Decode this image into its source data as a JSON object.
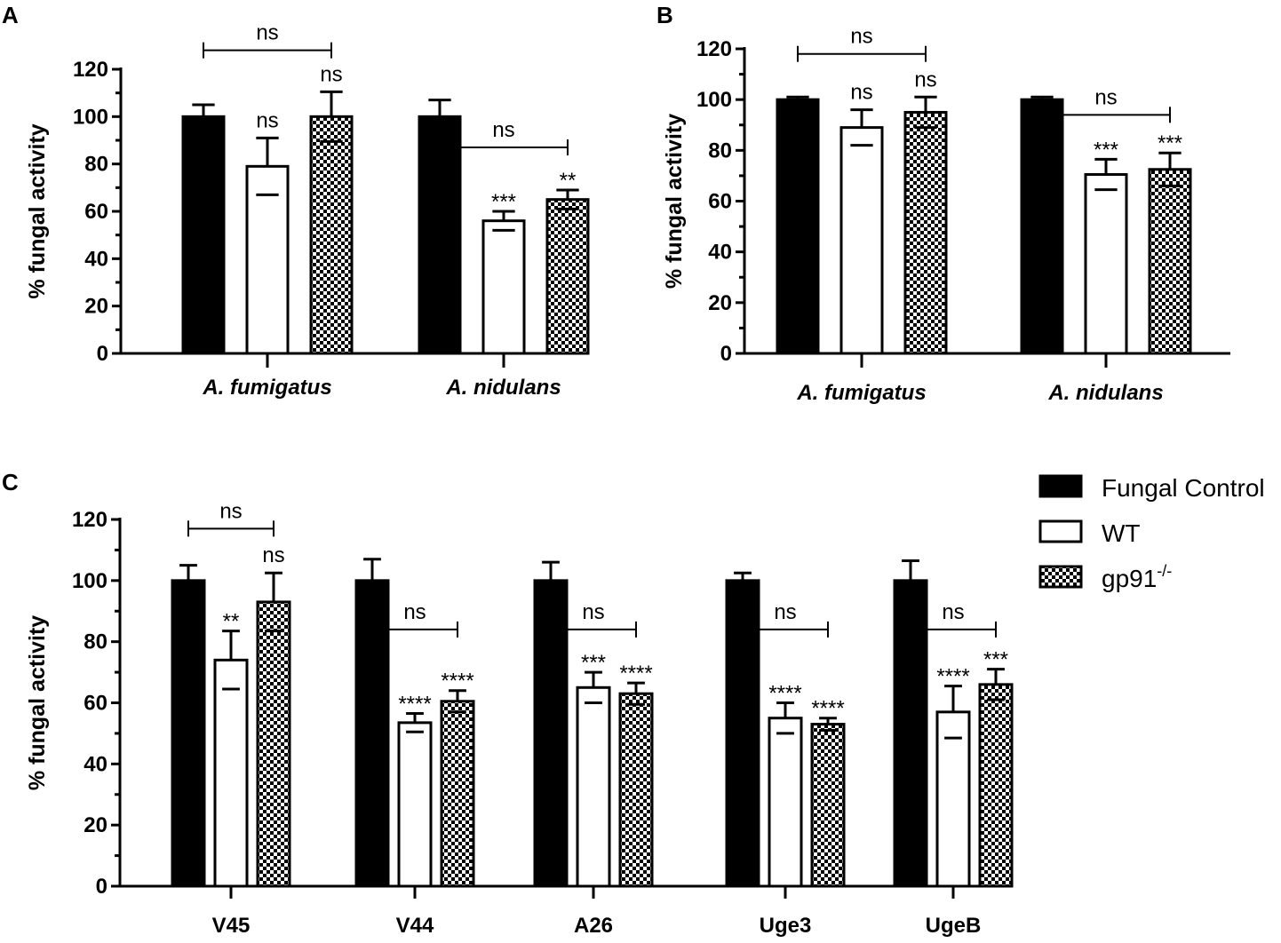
{
  "figure": {
    "legend": [
      {
        "name": "Fungal Control",
        "style": "solid"
      },
      {
        "name": "WT",
        "style": "open"
      },
      {
        "name": "gp91",
        "sup": "-/-",
        "style": "checker"
      }
    ]
  },
  "chart_data": [
    {
      "panel": "A",
      "type": "bar",
      "title": "",
      "xlabel": "",
      "ylabel": "% fungal activity",
      "ylim": [
        0,
        120
      ],
      "yticks": [
        "0",
        "20",
        "40",
        "60",
        "80",
        "100",
        "120"
      ],
      "categories": [
        "A. fumigatus",
        "A. nidulans"
      ],
      "series": [
        {
          "name": "Fungal Control",
          "values": [
            100,
            100
          ],
          "errors": [
            5,
            7
          ]
        },
        {
          "name": "WT",
          "values": [
            79,
            56
          ],
          "errors": [
            12,
            4
          ]
        },
        {
          "name": "gp91-/-",
          "values": [
            100,
            65
          ],
          "errors": [
            10.5,
            4
          ]
        }
      ],
      "annotations": [
        {
          "cat": 0,
          "series": 1,
          "text": "ns"
        },
        {
          "cat": 0,
          "series": 2,
          "text": "ns"
        },
        {
          "cat": 1,
          "series": 1,
          "text": "***"
        },
        {
          "cat": 1,
          "series": 2,
          "text": "**"
        }
      ],
      "brackets": [
        {
          "cat": 0,
          "text": "ns",
          "y": 128
        },
        {
          "cat": 1,
          "text": "ns",
          "y": 87
        }
      ]
    },
    {
      "panel": "B",
      "type": "bar",
      "title": "",
      "xlabel": "",
      "ylabel": "% fungal activity",
      "ylim": [
        0,
        120
      ],
      "yticks": [
        "0",
        "20",
        "40",
        "60",
        "80",
        "100",
        "120"
      ],
      "categories": [
        "A. fumigatus",
        "A. nidulans"
      ],
      "series": [
        {
          "name": "Fungal Control",
          "values": [
            100,
            100
          ],
          "errors": [
            1,
            1
          ]
        },
        {
          "name": "WT",
          "values": [
            89,
            70.5
          ],
          "errors": [
            7,
            6
          ]
        },
        {
          "name": "gp91-/-",
          "values": [
            95,
            72.5
          ],
          "errors": [
            6,
            6.5
          ]
        }
      ],
      "annotations": [
        {
          "cat": 0,
          "series": 1,
          "text": "ns"
        },
        {
          "cat": 0,
          "series": 2,
          "text": "ns"
        },
        {
          "cat": 1,
          "series": 1,
          "text": "***"
        },
        {
          "cat": 1,
          "series": 2,
          "text": "***"
        }
      ],
      "brackets": [
        {
          "cat": 0,
          "text": "ns",
          "y": 118
        },
        {
          "cat": 1,
          "text": "ns",
          "y": 94
        }
      ]
    },
    {
      "panel": "C",
      "type": "bar",
      "title": "",
      "xlabel": "",
      "ylabel": "% fungal activity",
      "ylim": [
        0,
        120
      ],
      "yticks": [
        "0",
        "20",
        "40",
        "60",
        "80",
        "100",
        "120"
      ],
      "categories": [
        "V45",
        "V44",
        "A26",
        "Uge3",
        "UgeB"
      ],
      "series": [
        {
          "name": "Fungal Control",
          "values": [
            100,
            100,
            100,
            100,
            100
          ],
          "errors": [
            5,
            7,
            6,
            2.5,
            6.5
          ]
        },
        {
          "name": "WT",
          "values": [
            74,
            53.5,
            65,
            55,
            57
          ],
          "errors": [
            9.5,
            3,
            5,
            5,
            8.5
          ]
        },
        {
          "name": "gp91-/-",
          "values": [
            93,
            60.5,
            63,
            53,
            66
          ],
          "errors": [
            9.5,
            3.5,
            3.5,
            2,
            5
          ]
        }
      ],
      "annotations": [
        {
          "cat": 0,
          "series": 1,
          "text": "**"
        },
        {
          "cat": 0,
          "series": 2,
          "text": "ns"
        },
        {
          "cat": 1,
          "series": 1,
          "text": "****"
        },
        {
          "cat": 1,
          "series": 2,
          "text": "****"
        },
        {
          "cat": 2,
          "series": 1,
          "text": "***"
        },
        {
          "cat": 2,
          "series": 2,
          "text": "****"
        },
        {
          "cat": 3,
          "series": 1,
          "text": "****"
        },
        {
          "cat": 3,
          "series": 2,
          "text": "****"
        },
        {
          "cat": 4,
          "series": 1,
          "text": "****"
        },
        {
          "cat": 4,
          "series": 2,
          "text": "***"
        }
      ],
      "brackets": [
        {
          "cat": 0,
          "text": "ns",
          "y": 117
        },
        {
          "cat": 1,
          "text": "ns",
          "y": 84
        },
        {
          "cat": 2,
          "text": "ns",
          "y": 84
        },
        {
          "cat": 3,
          "text": "ns",
          "y": 84
        },
        {
          "cat": 4,
          "text": "ns",
          "y": 84
        }
      ]
    }
  ]
}
